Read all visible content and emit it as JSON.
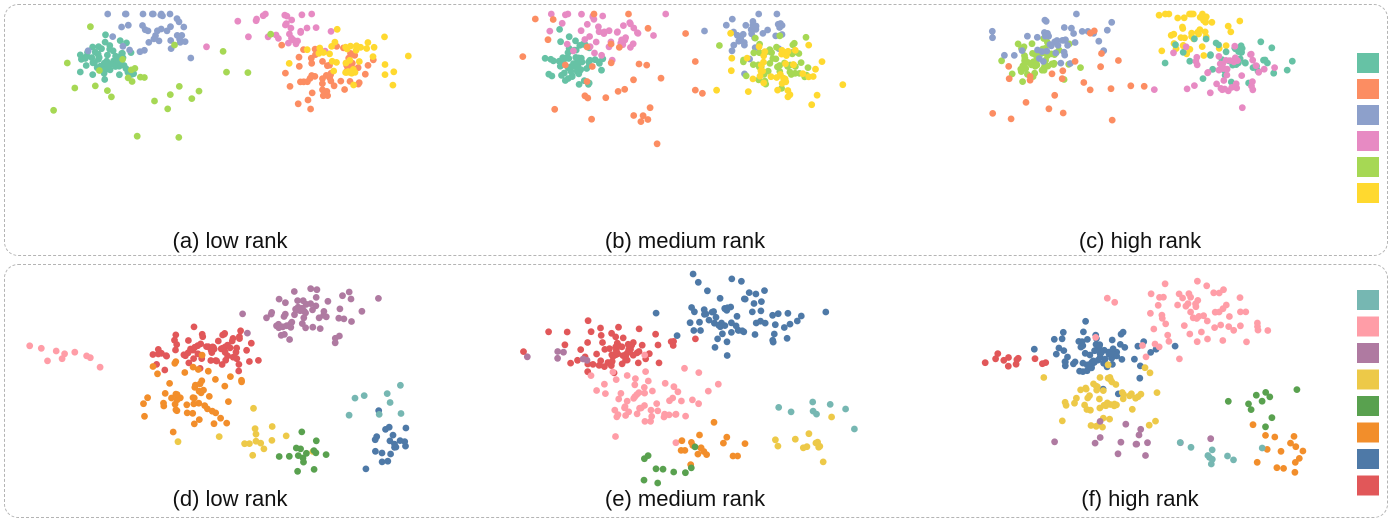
{
  "chart_data": [
    {
      "type": "scatter",
      "row": 0,
      "col": 0,
      "caption": "(a) low rank",
      "clusters": [
        {
          "color": "#66c2a5",
          "center": [
            100,
            48
          ],
          "spread": [
            24,
            12
          ],
          "n": 60
        },
        {
          "color": "#fc8d62",
          "center": [
            315,
            57
          ],
          "spread": [
            38,
            20
          ],
          "n": 55
        },
        {
          "color": "#8da0cb",
          "center": [
            140,
            20
          ],
          "spread": [
            45,
            22
          ],
          "n": 40
        },
        {
          "color": "#e78ac3",
          "center": [
            280,
            20
          ],
          "spread": [
            40,
            16
          ],
          "n": 30
        },
        {
          "color": "#a6d854",
          "center": [
            130,
            70
          ],
          "spread": [
            80,
            30
          ],
          "n": 28
        },
        {
          "color": "#ffd92f",
          "center": [
            340,
            48
          ],
          "spread": [
            35,
            18
          ],
          "n": 40
        }
      ]
    },
    {
      "type": "scatter",
      "row": 0,
      "col": 1,
      "caption": "(b) medium rank",
      "clusters": [
        {
          "color": "#66c2a5",
          "center": [
            110,
            50
          ],
          "spread": [
            25,
            12
          ],
          "n": 60
        },
        {
          "color": "#e78ac3",
          "center": [
            140,
            20
          ],
          "spread": [
            45,
            18
          ],
          "n": 45
        },
        {
          "color": "#8da0cb",
          "center": [
            290,
            20
          ],
          "spread": [
            40,
            16
          ],
          "n": 35
        },
        {
          "color": "#a6d854",
          "center": [
            310,
            45
          ],
          "spread": [
            35,
            16
          ],
          "n": 50
        },
        {
          "color": "#ffd92f",
          "center": [
            320,
            62
          ],
          "spread": [
            40,
            20
          ],
          "n": 45
        },
        {
          "color": "#fc8d62",
          "center": [
            160,
            65
          ],
          "spread": [
            90,
            35
          ],
          "n": 35
        }
      ]
    },
    {
      "type": "scatter",
      "row": 0,
      "col": 2,
      "caption": "(c) high rank",
      "clusters": [
        {
          "color": "#a6d854",
          "center": [
            110,
            48
          ],
          "spread": [
            24,
            12
          ],
          "n": 55
        },
        {
          "color": "#8da0cb",
          "center": [
            130,
            25
          ],
          "spread": [
            50,
            20
          ],
          "n": 45
        },
        {
          "color": "#ffd92f",
          "center": [
            270,
            20
          ],
          "spread": [
            35,
            22
          ],
          "n": 45
        },
        {
          "color": "#66c2a5",
          "center": [
            310,
            48
          ],
          "spread": [
            40,
            16
          ],
          "n": 45
        },
        {
          "color": "#e78ac3",
          "center": [
            300,
            62
          ],
          "spread": [
            45,
            18
          ],
          "n": 45
        },
        {
          "color": "#fc8d62",
          "center": [
            120,
            65
          ],
          "spread": [
            70,
            30
          ],
          "n": 25
        }
      ]
    },
    {
      "type": "scatter",
      "row": 1,
      "col": 0,
      "caption": "(d) low rank",
      "clusters": [
        {
          "color": "#e15759",
          "center": [
            195,
            78
          ],
          "spread": [
            40,
            13
          ],
          "n": 70
        },
        {
          "color": "#af7aa1",
          "center": [
            300,
            40
          ],
          "spread": [
            50,
            18
          ],
          "n": 60
        },
        {
          "color": "#ff9da7",
          "center": [
            60,
            82
          ],
          "spread": [
            30,
            8
          ],
          "n": 10
        },
        {
          "color": "#f28e2b",
          "center": [
            180,
            125
          ],
          "spread": [
            40,
            20
          ],
          "n": 55
        },
        {
          "color": "#edc948",
          "center": [
            240,
            165
          ],
          "spread": [
            40,
            15
          ],
          "n": 15
        },
        {
          "color": "#59a14f",
          "center": [
            300,
            185
          ],
          "spread": [
            30,
            10
          ],
          "n": 15
        },
        {
          "color": "#4e79a7",
          "center": [
            375,
            170
          ],
          "spread": [
            20,
            15
          ],
          "n": 20
        },
        {
          "color": "#76b7b2",
          "center": [
            370,
            128
          ],
          "spread": [
            30,
            12
          ],
          "n": 8
        }
      ]
    },
    {
      "type": "scatter",
      "row": 1,
      "col": 1,
      "caption": "(e) medium rank",
      "clusters": [
        {
          "color": "#e15759",
          "center": [
            160,
            78
          ],
          "spread": [
            45,
            13
          ],
          "n": 70
        },
        {
          "color": "#4e79a7",
          "center": [
            270,
            45
          ],
          "spread": [
            55,
            20
          ],
          "n": 70
        },
        {
          "color": "#ff9da7",
          "center": [
            180,
            125
          ],
          "spread": [
            45,
            22
          ],
          "n": 60
        },
        {
          "color": "#f28e2b",
          "center": [
            240,
            180
          ],
          "spread": [
            40,
            15
          ],
          "n": 18
        },
        {
          "color": "#59a14f",
          "center": [
            200,
            185
          ],
          "spread": [
            30,
            12
          ],
          "n": 10
        },
        {
          "color": "#edc948",
          "center": [
            350,
            175
          ],
          "spread": [
            25,
            15
          ],
          "n": 12
        },
        {
          "color": "#76b7b2",
          "center": [
            360,
            135
          ],
          "spread": [
            30,
            12
          ],
          "n": 8
        },
        {
          "color": "#af7aa1",
          "center": [
            100,
            82
          ],
          "spread": [
            40,
            8
          ],
          "n": 6
        }
      ]
    },
    {
      "type": "scatter",
      "row": 1,
      "col": 2,
      "caption": "(f) high rank",
      "clusters": [
        {
          "color": "#4e79a7",
          "center": [
            170,
            80
          ],
          "spread": [
            45,
            18
          ],
          "n": 75
        },
        {
          "color": "#ff9da7",
          "center": [
            270,
            45
          ],
          "spread": [
            55,
            20
          ],
          "n": 65
        },
        {
          "color": "#edc948",
          "center": [
            180,
            130
          ],
          "spread": [
            40,
            20
          ],
          "n": 55
        },
        {
          "color": "#e15759",
          "center": [
            70,
            82
          ],
          "spread": [
            40,
            10
          ],
          "n": 12
        },
        {
          "color": "#af7aa1",
          "center": [
            200,
            170
          ],
          "spread": [
            50,
            15
          ],
          "n": 15
        },
        {
          "color": "#59a14f",
          "center": [
            330,
            130
          ],
          "spread": [
            25,
            15
          ],
          "n": 10
        },
        {
          "color": "#f28e2b",
          "center": [
            350,
            175
          ],
          "spread": [
            25,
            15
          ],
          "n": 15
        },
        {
          "color": "#76b7b2",
          "center": [
            290,
            180
          ],
          "spread": [
            30,
            12
          ],
          "n": 10
        }
      ]
    }
  ],
  "legends": [
    {
      "colors": [
        "#66c2a5",
        "#fc8d62",
        "#8da0cb",
        "#e78ac3",
        "#a6d854",
        "#ffd92f"
      ]
    },
    {
      "colors": [
        "#76b7b2",
        "#ff9da7",
        "#af7aa1",
        "#edc948",
        "#59a14f",
        "#f28e2b",
        "#4e79a7",
        "#e15759"
      ]
    }
  ]
}
